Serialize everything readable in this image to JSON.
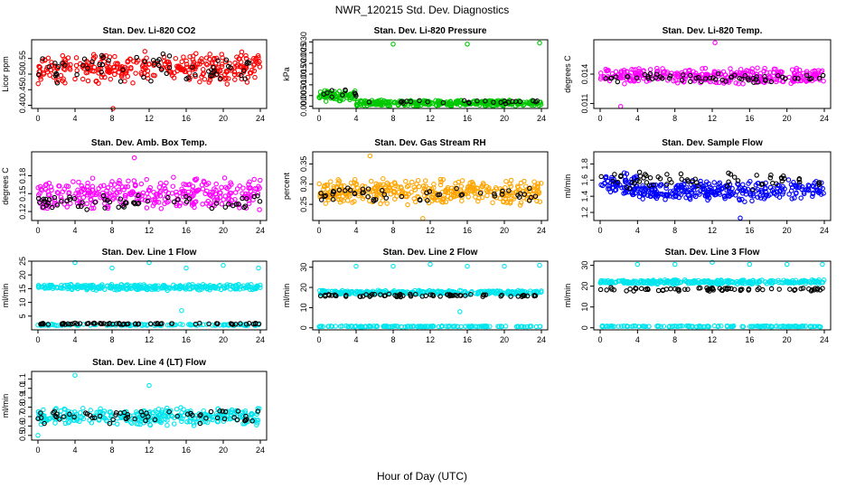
{
  "figure": {
    "title": "NWR_120215  Std. Dev. Diagnostics",
    "xlabel": "Hour of Day (UTC)"
  },
  "chart_data": [
    {
      "type": "scatter",
      "title": "Stan. Dev. Li-820 CO2",
      "xlabel": "",
      "ylabel": "Licor ppm",
      "xlim": [
        0,
        24
      ],
      "ylim": [
        0.39,
        0.61
      ],
      "xticks": [
        "0",
        "4",
        "8",
        "12",
        "16",
        "20",
        "24"
      ],
      "yticks": [
        "0.40",
        "0.45",
        "0.50",
        "0.55"
      ],
      "grid": false,
      "series": [
        {
          "color": "#ff0000",
          "bands": [
            {
              "x": [
                0,
                24
              ],
              "center": 0.52,
              "spread": 0.055,
              "count": 330
            }
          ],
          "outliers": [
            {
              "x": 8.1,
              "y": 0.39
            }
          ]
        },
        {
          "color": "#000000",
          "bands": [
            {
              "x": [
                0,
                24
              ],
              "center": 0.52,
              "spread": 0.055,
              "count": 60
            }
          ],
          "outliers": []
        }
      ]
    },
    {
      "type": "scatter",
      "title": "Stan. Dev. Li-820 Pressure",
      "xlabel": "",
      "ylabel": "kPa",
      "xlim": [
        0,
        24
      ],
      "ylim": [
        -0.001,
        0.031
      ],
      "xticks": [
        "0",
        "4",
        "8",
        "12",
        "16",
        "20",
        "24"
      ],
      "yticks": [
        "0.000",
        "0.005",
        "0.010",
        "0.015",
        "0.020",
        "0.025",
        "0.030"
      ],
      "grid": false,
      "series": [
        {
          "color": "#00c800",
          "bands": [
            {
              "x": [
                0,
                4
              ],
              "center": 0.005,
              "spread": 0.003,
              "count": 70
            },
            {
              "x": [
                4,
                24
              ],
              "center": 0.0015,
              "spread": 0.0015,
              "count": 330
            }
          ],
          "outliers": [
            {
              "x": 8,
              "y": 0.029
            },
            {
              "x": 16,
              "y": 0.029
            },
            {
              "x": 23.8,
              "y": 0.0295
            }
          ]
        },
        {
          "color": "#000000",
          "bands": [
            {
              "x": [
                0,
                4
              ],
              "center": 0.006,
              "spread": 0.003,
              "count": 10
            },
            {
              "x": [
                4,
                24
              ],
              "center": 0.002,
              "spread": 0.001,
              "count": 25
            }
          ],
          "outliers": []
        }
      ]
    },
    {
      "type": "scatter",
      "title": "Stan. Dev. Li-820 Temp.",
      "xlabel": "",
      "ylabel": "degrees C",
      "xlim": [
        0,
        24
      ],
      "ylim": [
        0.0105,
        0.0175
      ],
      "xticks": [
        "0",
        "4",
        "8",
        "12",
        "16",
        "20",
        "24"
      ],
      "yticks": [
        "0.011",
        "0.014"
      ],
      "grid": false,
      "series": [
        {
          "color": "#ff00ff",
          "bands": [
            {
              "x": [
                0,
                24
              ],
              "center": 0.0138,
              "spread": 0.0009,
              "count": 330
            }
          ],
          "outliers": [
            {
              "x": 12.3,
              "y": 0.0172
            },
            {
              "x": 2.2,
              "y": 0.0107
            }
          ]
        },
        {
          "color": "#000000",
          "bands": [
            {
              "x": [
                0,
                24
              ],
              "center": 0.0136,
              "spread": 0.0005,
              "count": 60
            }
          ],
          "outliers": []
        }
      ]
    },
    {
      "type": "scatter",
      "title": "Stan. Dev. Amb. Box Temp.",
      "xlabel": "",
      "ylabel": "degrees C",
      "xlim": [
        0,
        24
      ],
      "ylim": [
        0.105,
        0.22
      ],
      "xticks": [
        "0",
        "4",
        "8",
        "12",
        "16",
        "20",
        "24"
      ],
      "yticks": [
        "0.12",
        "0.15",
        "0.18"
      ],
      "grid": false,
      "series": [
        {
          "color": "#ff00ff",
          "bands": [
            {
              "x": [
                0,
                24
              ],
              "center": 0.15,
              "spread": 0.03,
              "count": 330
            }
          ],
          "outliers": [
            {
              "x": 10.4,
              "y": 0.21
            }
          ]
        },
        {
          "color": "#000000",
          "bands": [
            {
              "x": [
                0,
                24
              ],
              "center": 0.135,
              "spread": 0.015,
              "count": 60
            }
          ],
          "outliers": []
        }
      ]
    },
    {
      "type": "scatter",
      "title": "Stan. Dev. Gas Stream RH",
      "xlabel": "",
      "ylabel": "percent",
      "xlim": [
        0,
        24
      ],
      "ylim": [
        0.21,
        0.38
      ],
      "xticks": [
        "0",
        "4",
        "8",
        "12",
        "16",
        "20",
        "24"
      ],
      "yticks": [
        "0.25",
        "0.30",
        "0.35"
      ],
      "grid": false,
      "series": [
        {
          "color": "#ffa500",
          "bands": [
            {
              "x": [
                0,
                24
              ],
              "center": 0.28,
              "spread": 0.035,
              "count": 360
            }
          ],
          "outliers": [
            {
              "x": 5.5,
              "y": 0.37
            },
            {
              "x": 11.2,
              "y": 0.215
            }
          ]
        },
        {
          "color": "#000000",
          "bands": [
            {
              "x": [
                0,
                24
              ],
              "center": 0.275,
              "spread": 0.02,
              "count": 50
            }
          ],
          "outliers": []
        }
      ]
    },
    {
      "type": "scatter",
      "title": "Stan. Dev. Sample Flow",
      "xlabel": "",
      "ylabel": "ml/min",
      "xlim": [
        0,
        24
      ],
      "ylim": [
        1.1,
        1.95
      ],
      "xticks": [
        "0",
        "4",
        "8",
        "12",
        "16",
        "20",
        "24"
      ],
      "yticks": [
        "1.2",
        "1.4",
        "1.6",
        "1.8"
      ],
      "grid": false,
      "series": [
        {
          "color": "#0000ff",
          "bands": [
            {
              "x": [
                0,
                4
              ],
              "center": 1.55,
              "spread": 0.15,
              "count": 70
            },
            {
              "x": [
                4,
                24
              ],
              "center": 1.47,
              "spread": 0.14,
              "count": 290
            }
          ],
          "outliers": [
            {
              "x": 15,
              "y": 1.13
            }
          ]
        },
        {
          "color": "#000000",
          "bands": [
            {
              "x": [
                0,
                24
              ],
              "center": 1.6,
              "spread": 0.12,
              "count": 60
            }
          ],
          "outliers": []
        }
      ]
    },
    {
      "type": "scatter",
      "title": "Stan. Dev. Line 1 Flow",
      "xlabel": "",
      "ylabel": "ml/min",
      "xlim": [
        0,
        24
      ],
      "ylim": [
        0,
        25
      ],
      "xticks": [
        "0",
        "4",
        "8",
        "12",
        "16",
        "20",
        "24"
      ],
      "yticks": [
        "5",
        "10",
        "15",
        "20",
        "25"
      ],
      "grid": false,
      "series": [
        {
          "color": "#00e5ee",
          "bands": [
            {
              "x": [
                0,
                24
              ],
              "center": 15.5,
              "spread": 1.2,
              "count": 300
            },
            {
              "x": [
                0,
                24
              ],
              "center": 1.8,
              "spread": 0.3,
              "count": 120
            }
          ],
          "outliers": [
            {
              "x": 4,
              "y": 24.5
            },
            {
              "x": 8,
              "y": 22.5
            },
            {
              "x": 12,
              "y": 24.5
            },
            {
              "x": 15.5,
              "y": 7
            },
            {
              "x": 16,
              "y": 22.5
            },
            {
              "x": 20,
              "y": 23.5
            },
            {
              "x": 23.8,
              "y": 22.5
            }
          ]
        },
        {
          "color": "#000000",
          "bands": [
            {
              "x": [
                0,
                24
              ],
              "center": 2.2,
              "spread": 0.3,
              "count": 70
            }
          ],
          "outliers": []
        }
      ]
    },
    {
      "type": "scatter",
      "title": "Stan. Dev. Line 2 Flow",
      "xlabel": "",
      "ylabel": "ml/min",
      "xlim": [
        0,
        24
      ],
      "ylim": [
        -1,
        33
      ],
      "xticks": [
        "0",
        "4",
        "8",
        "12",
        "16",
        "20",
        "24"
      ],
      "yticks": [
        "0",
        "10",
        "20",
        "30"
      ],
      "grid": false,
      "series": [
        {
          "color": "#00e5ee",
          "bands": [
            {
              "x": [
                0,
                24
              ],
              "center": 17.5,
              "spread": 1.2,
              "count": 300
            },
            {
              "x": [
                0,
                24
              ],
              "center": 0.7,
              "spread": 0.3,
              "count": 150
            }
          ],
          "outliers": [
            {
              "x": 4,
              "y": 30.5
            },
            {
              "x": 8,
              "y": 30.5
            },
            {
              "x": 12,
              "y": 31.5
            },
            {
              "x": 15.2,
              "y": 8
            },
            {
              "x": 16,
              "y": 30.5
            },
            {
              "x": 20,
              "y": 30.5
            },
            {
              "x": 23.8,
              "y": 31
            }
          ]
        },
        {
          "color": "#000000",
          "bands": [
            {
              "x": [
                0,
                24
              ],
              "center": 16,
              "spread": 0.8,
              "count": 70
            }
          ],
          "outliers": []
        }
      ]
    },
    {
      "type": "scatter",
      "title": "Stan. Dev. Line 3 Flow",
      "xlabel": "",
      "ylabel": "ml/min",
      "xlim": [
        0,
        24
      ],
      "ylim": [
        -1,
        32
      ],
      "xticks": [
        "0",
        "4",
        "8",
        "12",
        "16",
        "20",
        "24"
      ],
      "yticks": [
        "0",
        "10",
        "20",
        "30"
      ],
      "grid": false,
      "series": [
        {
          "color": "#00e5ee",
          "bands": [
            {
              "x": [
                0,
                24
              ],
              "center": 22,
              "spread": 1.2,
              "count": 300
            },
            {
              "x": [
                0,
                24
              ],
              "center": 0.7,
              "spread": 0.3,
              "count": 150
            }
          ],
          "outliers": [
            {
              "x": 4,
              "y": 30.5
            },
            {
              "x": 8,
              "y": 30.5
            },
            {
              "x": 12,
              "y": 31.5
            },
            {
              "x": 16,
              "y": 30.5
            },
            {
              "x": 20,
              "y": 30.5
            },
            {
              "x": 23.8,
              "y": 30.5
            }
          ]
        },
        {
          "color": "#000000",
          "bands": [
            {
              "x": [
                0,
                24
              ],
              "center": 18.5,
              "spread": 1,
              "count": 70
            }
          ],
          "outliers": []
        }
      ]
    },
    {
      "type": "scatter",
      "title": "Stan. Dev. Line 4 (LT) Flow",
      "xlabel": "",
      "ylabel": "ml/min",
      "xlim": [
        0,
        24
      ],
      "ylim": [
        0.45,
        1.18
      ],
      "xticks": [
        "0",
        "4",
        "8",
        "12",
        "16",
        "20",
        "24"
      ],
      "yticks": [
        "0.5",
        "0.6",
        "0.7",
        "0.8",
        "0.9",
        "1.0",
        "1.1"
      ],
      "grid": false,
      "series": [
        {
          "color": "#00e5ee",
          "bands": [
            {
              "x": [
                0,
                24
              ],
              "center": 0.7,
              "spread": 0.1,
              "count": 330
            }
          ],
          "outliers": [
            {
              "x": 4,
              "y": 1.14
            },
            {
              "x": 12,
              "y": 1.03
            },
            {
              "x": 0,
              "y": 0.5
            }
          ]
        },
        {
          "color": "#000000",
          "bands": [
            {
              "x": [
                0,
                24
              ],
              "center": 0.7,
              "spread": 0.08,
              "count": 60
            }
          ],
          "outliers": []
        }
      ]
    }
  ]
}
